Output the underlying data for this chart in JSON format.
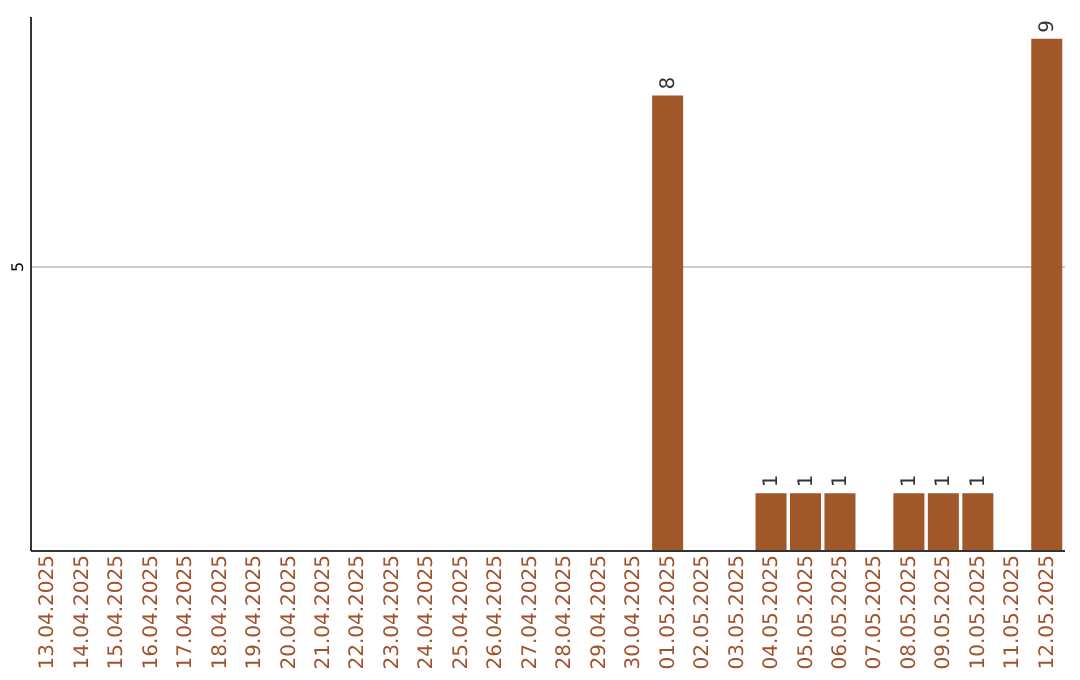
{
  "chart_data": {
    "type": "bar",
    "categories": [
      "13.04.2025",
      "14.04.2025",
      "15.04.2025",
      "16.04.2025",
      "17.04.2025",
      "18.04.2025",
      "19.04.2025",
      "20.04.2025",
      "21.04.2025",
      "22.04.2025",
      "23.04.2025",
      "24.04.2025",
      "25.04.2025",
      "26.04.2025",
      "27.04.2025",
      "28.04.2025",
      "29.04.2025",
      "30.04.2025",
      "01.05.2025",
      "02.05.2025",
      "03.05.2025",
      "04.05.2025",
      "05.05.2025",
      "06.05.2025",
      "07.05.2025",
      "08.05.2025",
      "09.05.2025",
      "10.05.2025",
      "11.05.2025",
      "12.05.2025"
    ],
    "values": [
      null,
      null,
      null,
      null,
      null,
      null,
      null,
      null,
      null,
      null,
      null,
      null,
      null,
      null,
      null,
      null,
      null,
      null,
      8,
      null,
      null,
      1,
      1,
      1,
      null,
      1,
      1,
      1,
      null,
      9
    ],
    "data_labels": true,
    "color": "#a0572a",
    "ylim": [
      0,
      9.4
    ],
    "yticks": [
      5
    ],
    "grid": "y"
  }
}
